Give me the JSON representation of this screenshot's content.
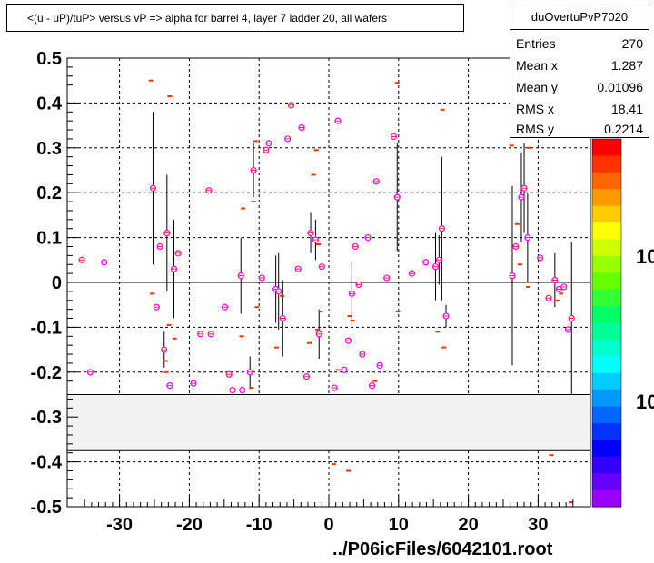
{
  "title": "<(u - uP)/tuP> versus   vP => alpha for barrel 4, layer 7 ladder 20, all wafers",
  "stats": {
    "name": "duOvertuPvP7020",
    "rows": [
      {
        "label": "Entries",
        "value": "270"
      },
      {
        "label": "Mean x",
        "value": "1.287"
      },
      {
        "label": "Mean y",
        "value": "0.01096"
      },
      {
        "label": "RMS x",
        "value": "18.41"
      },
      {
        "label": "RMS y",
        "value": "0.2214"
      }
    ]
  },
  "footer": "../P06icFiles/6042101.root",
  "palette": {
    "labels": [
      "10",
      "10"
    ],
    "colors": [
      "#ff0000",
      "#ff3300",
      "#ff6600",
      "#ff9900",
      "#ffcc00",
      "#ffff00",
      "#ccff00",
      "#99ff00",
      "#66ff00",
      "#33ff33",
      "#00ff66",
      "#00ff99",
      "#00ffcc",
      "#00ffff",
      "#00ccff",
      "#0099ff",
      "#0066ff",
      "#0033ff",
      "#0000ff",
      "#3300ff",
      "#6600ff",
      "#9900ff"
    ]
  },
  "colors": {
    "marker": "#ff00ff",
    "dash": "#ff3300",
    "band": "#f2f2f2"
  },
  "chart_data": {
    "type": "scatter",
    "xlim": [
      -37.5,
      37.5
    ],
    "ylim": [
      -0.5,
      0.5
    ],
    "xticks": [
      "-30",
      "-20",
      "-10",
      "0",
      "10",
      "20",
      "30"
    ],
    "yticks": [
      "-0.5",
      "-0.4",
      "-0.3",
      "-0.2",
      "-0.1",
      "0",
      "0.1",
      "0.2",
      "0.3",
      "0.4",
      "0.5"
    ],
    "grid": true,
    "band": [
      -0.375,
      -0.25
    ],
    "points": [
      {
        "x": -35.4,
        "y": 0.05
      },
      {
        "x": -34.2,
        "y": -0.2
      },
      {
        "x": -32.2,
        "y": 0.045
      },
      {
        "x": -25.2,
        "y": 0.21,
        "e": 0.17
      },
      {
        "x": -24.7,
        "y": -0.055
      },
      {
        "x": -24.2,
        "y": 0.08
      },
      {
        "x": -23.6,
        "y": -0.15,
        "e": 0.04
      },
      {
        "x": -23.2,
        "y": 0.11,
        "e": 0.13
      },
      {
        "x": -22.8,
        "y": -0.23
      },
      {
        "x": -22.2,
        "y": 0.03,
        "e": 0.11
      },
      {
        "x": -21.6,
        "y": 0.065
      },
      {
        "x": -19.4,
        "y": -0.225
      },
      {
        "x": -18.4,
        "y": -0.115
      },
      {
        "x": -17.2,
        "y": 0.205
      },
      {
        "x": -16.9,
        "y": -0.115
      },
      {
        "x": -14.9,
        "y": -0.055
      },
      {
        "x": -14.3,
        "y": -0.205
      },
      {
        "x": -13.8,
        "y": -0.24
      },
      {
        "x": -12.6,
        "y": 0.015,
        "e": 0.085
      },
      {
        "x": -12.4,
        "y": -0.24
      },
      {
        "x": -11.3,
        "y": -0.2,
        "e": 0.035
      },
      {
        "x": -10.8,
        "y": 0.25,
        "e": 0.06
      },
      {
        "x": -9.6,
        "y": 0.01
      },
      {
        "x": -9.0,
        "y": 0.295
      },
      {
        "x": -8.6,
        "y": 0.31
      },
      {
        "x": -7.6,
        "y": -0.015,
        "e": 0.075
      },
      {
        "x": -7.2,
        "y": -0.02,
        "e": 0.085
      },
      {
        "x": -6.6,
        "y": -0.08,
        "e": 0.085
      },
      {
        "x": -5.9,
        "y": 0.32
      },
      {
        "x": -5.4,
        "y": 0.395
      },
      {
        "x": -4.4,
        "y": 0.03
      },
      {
        "x": -3.9,
        "y": 0.345
      },
      {
        "x": -3.2,
        "y": -0.21
      },
      {
        "x": -2.6,
        "y": 0.11,
        "e": 0.045
      },
      {
        "x": -1.9,
        "y": 0.095,
        "e": 0.045
      },
      {
        "x": -1.4,
        "y": -0.115,
        "e": 0.055
      },
      {
        "x": -1.0,
        "y": 0.035
      },
      {
        "x": 0.8,
        "y": -0.235
      },
      {
        "x": 1.3,
        "y": 0.36
      },
      {
        "x": 2.2,
        "y": -0.195
      },
      {
        "x": 2.8,
        "y": -0.13
      },
      {
        "x": 3.3,
        "y": -0.025,
        "e": 0.07
      },
      {
        "x": 3.8,
        "y": 0.08
      },
      {
        "x": 4.3,
        "y": -0.005
      },
      {
        "x": 4.8,
        "y": -0.16
      },
      {
        "x": 5.6,
        "y": 0.1
      },
      {
        "x": 6.2,
        "y": -0.23
      },
      {
        "x": 6.8,
        "y": 0.225
      },
      {
        "x": 7.3,
        "y": -0.185
      },
      {
        "x": 8.3,
        "y": 0.01
      },
      {
        "x": 9.3,
        "y": 0.325
      },
      {
        "x": 9.8,
        "y": 0.19,
        "e": 0.12
      },
      {
        "x": 11.9,
        "y": 0.02
      },
      {
        "x": 13.9,
        "y": 0.045
      },
      {
        "x": 15.3,
        "y": 0.035,
        "e": 0.075
      },
      {
        "x": 15.8,
        "y": 0.05,
        "e": 0.055
      },
      {
        "x": 16.2,
        "y": 0.12,
        "e": 0.16
      },
      {
        "x": 16.8,
        "y": -0.075,
        "e": 0.025
      },
      {
        "x": 26.3,
        "y": 0.015,
        "e": 0.2
      },
      {
        "x": 26.8,
        "y": 0.08
      },
      {
        "x": 27.6,
        "y": 0.19,
        "e": 0.1
      },
      {
        "x": 28.0,
        "y": 0.21,
        "e": 0.1
      },
      {
        "x": 28.5,
        "y": 0.1,
        "e": 0.1
      },
      {
        "x": 30.3,
        "y": 0.055
      },
      {
        "x": 31.5,
        "y": -0.035
      },
      {
        "x": 32.4,
        "y": 0.005,
        "e": 0.06
      },
      {
        "x": 33.0,
        "y": -0.015
      },
      {
        "x": 33.7,
        "y": -0.01
      },
      {
        "x": 34.3,
        "y": -0.105
      },
      {
        "x": 34.8,
        "y": -0.08,
        "e": 0.17
      }
    ],
    "dashes": [
      {
        "x": -25.5,
        "y": 0.45
      },
      {
        "x": -22.8,
        "y": 0.415
      },
      {
        "x": -25.3,
        "y": -0.025
      },
      {
        "x": -23.4,
        "y": -0.175
      },
      {
        "x": -22.1,
        "y": -0.125
      },
      {
        "x": -22.9,
        "y": -0.095
      },
      {
        "x": -23.3,
        "y": -0.2
      },
      {
        "x": -12.3,
        "y": 0.165
      },
      {
        "x": -12.5,
        "y": -0.12
      },
      {
        "x": -10.8,
        "y": 0.18
      },
      {
        "x": -10.5,
        "y": 0.315
      },
      {
        "x": -11.1,
        "y": -0.235
      },
      {
        "x": -10.3,
        "y": -0.055
      },
      {
        "x": -7.5,
        "y": -0.145
      },
      {
        "x": -6.7,
        "y": -0.03
      },
      {
        "x": -2.2,
        "y": 0.24
      },
      {
        "x": -1.8,
        "y": 0.295
      },
      {
        "x": -1.5,
        "y": 0.085
      },
      {
        "x": -1.2,
        "y": -0.065
      },
      {
        "x": -2.8,
        "y": -0.135
      },
      {
        "x": -1.6,
        "y": -0.105
      },
      {
        "x": 0.7,
        "y": -0.405
      },
      {
        "x": 2.8,
        "y": -0.42
      },
      {
        "x": 1.3,
        "y": -0.195
      },
      {
        "x": 3.0,
        "y": -0.075
      },
      {
        "x": 3.4,
        "y": -0.085
      },
      {
        "x": 9.8,
        "y": 0.445
      },
      {
        "x": 9.9,
        "y": -0.065
      },
      {
        "x": 6.6,
        "y": -0.22
      },
      {
        "x": 15.6,
        "y": -0.11
      },
      {
        "x": 16.3,
        "y": 0.385
      },
      {
        "x": 16.5,
        "y": -0.145
      },
      {
        "x": 26.2,
        "y": 0.305
      },
      {
        "x": 27.0,
        "y": 0.13
      },
      {
        "x": 27.4,
        "y": 0.04
      },
      {
        "x": 28.7,
        "y": 0.3
      },
      {
        "x": 28.6,
        "y": -0.01
      },
      {
        "x": 31.9,
        "y": -0.385
      },
      {
        "x": 32.7,
        "y": -0.04
      },
      {
        "x": 33.3,
        "y": -0.025
      },
      {
        "x": 34.7,
        "y": -0.49
      }
    ]
  }
}
